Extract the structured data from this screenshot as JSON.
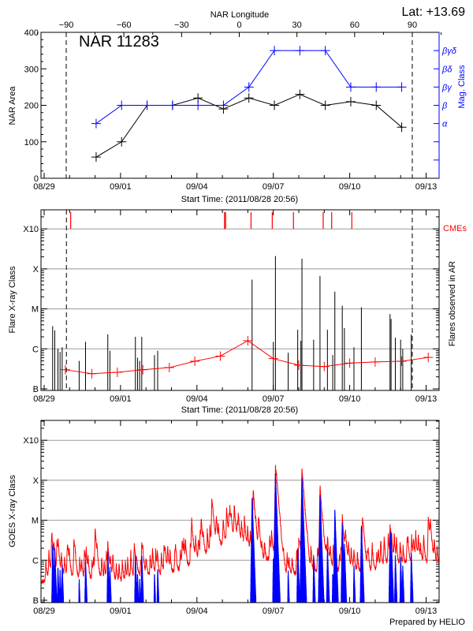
{
  "footer": "Prepared by HELIO",
  "chart_data": [
    {
      "type": "line",
      "title": "NAR 11283",
      "annotation": "Lat: +13.69",
      "top_xlabel": "NAR Longitude",
      "top_xticks": [
        "-90",
        "-60",
        "-30",
        "0",
        "30",
        "60",
        "90"
      ],
      "xlabel": "Start Time: (2011/08/28 20:56)",
      "xticks": [
        "08/29",
        "09/01",
        "09/04",
        "09/07",
        "09/10",
        "09/13"
      ],
      "ylabel": "NAR Area",
      "ylim": [
        0,
        400
      ],
      "yticks": [
        "0",
        "100",
        "200",
        "300",
        "400"
      ],
      "y2label": "Mag. Class",
      "y2ticks": [
        "α",
        "β",
        "βγ",
        "βδ",
        "βγδ"
      ],
      "limb_longitudes": [
        -90,
        90
      ],
      "dates": [
        "08/31 01:00",
        "09/01 01:00",
        "09/02 01:00",
        "09/03 01:00",
        "09/04 01:00",
        "09/05 01:00",
        "09/06 01:00",
        "09/07 01:00",
        "09/08 01:00",
        "09/09 01:00",
        "09/10 01:00",
        "09/11 01:00",
        "09/12 01:00"
      ],
      "series": [
        {
          "values": [
            58,
            100,
            200,
            200,
            220,
            190,
            220,
            200,
            230,
            200,
            210,
            200,
            140
          ],
          "color": "#000000"
        },
        {
          "values": [
            "α",
            "β",
            "β",
            "β",
            "β",
            "β",
            "βγ",
            "βγδ",
            "βγδ",
            "βγδ",
            "βγ",
            "βγ",
            "βγ"
          ],
          "color": "#0000ff"
        }
      ]
    },
    {
      "type": "bar",
      "xlabel": "Start Time: (2011/08/28 20:56)",
      "xticks": [
        "08/29",
        "09/01",
        "09/04",
        "09/07",
        "09/10",
        "09/13"
      ],
      "ylabel": "Flare X-ray Class",
      "y2label": "Flares observed in AR",
      "yticks": [
        "B",
        "C",
        "M",
        "X",
        "X10"
      ],
      "grid": true,
      "cme_label": "CMEs",
      "cme_color": "#ff0000",
      "limb_crossings": [
        "08/29 21:00",
        "09/12 11:00"
      ],
      "cmes": [
        "08/30 01:00",
        "09/05 02:00",
        "09/05 03:00",
        "09/06 03:00",
        "09/06 23:00",
        "09/07 19:00",
        "09/08 23:00",
        "09/09 07:00",
        "09/10 02:00"
      ],
      "flares": [
        {
          "t": "08/29 08:00",
          "c": "C3.7"
        },
        {
          "t": "08/29 10:00",
          "c": "C2.9"
        },
        {
          "t": "08/29 13:00",
          "c": "C1.0"
        },
        {
          "t": "08/29 15:00",
          "c": "B8.4"
        },
        {
          "t": "08/29 17:00",
          "c": "C1.1"
        },
        {
          "t": "08/30 09:00",
          "c": "B5.0"
        },
        {
          "t": "08/30 15:00",
          "c": "C1.5"
        },
        {
          "t": "08/31 12:00",
          "c": "C2.3"
        },
        {
          "t": "08/31 14:00",
          "c": "B9.0"
        },
        {
          "t": "09/01 14:00",
          "c": "C2.0"
        },
        {
          "t": "09/01 16:00",
          "c": "B6.0"
        },
        {
          "t": "09/01 18:00",
          "c": "B5.0"
        },
        {
          "t": "09/01 20:00",
          "c": "C2.0"
        },
        {
          "t": "09/02 08:00",
          "c": "B7.0"
        },
        {
          "t": "09/02 11:00",
          "c": "B9.0"
        },
        {
          "t": "09/06 04:00",
          "c": "M5.4"
        },
        {
          "t": "09/07 00:00",
          "c": "C1.5"
        },
        {
          "t": "09/07 02:00",
          "c": "X2.1"
        },
        {
          "t": "09/07 14:00",
          "c": "B8.0"
        },
        {
          "t": "09/07 23:00",
          "c": "C3.0"
        },
        {
          "t": "09/08 02:00",
          "c": "C1.6"
        },
        {
          "t": "09/08 03:00",
          "c": "X1.8"
        },
        {
          "t": "09/08 14:00",
          "c": "C1.7"
        },
        {
          "t": "09/08 20:00",
          "c": "M6.7"
        },
        {
          "t": "09/09 03:00",
          "c": "C3.0"
        },
        {
          "t": "09/09 08:00",
          "c": "B7.0"
        },
        {
          "t": "09/09 10:00",
          "c": "M2.7"
        },
        {
          "t": "09/09 17:00",
          "c": "M1.2"
        },
        {
          "t": "09/09 19:00",
          "c": "C3.3"
        },
        {
          "t": "09/10 04:00",
          "c": "C1.1"
        },
        {
          "t": "09/10 11:00",
          "c": "M1.1"
        },
        {
          "t": "09/11 14:00",
          "c": "C7.4"
        },
        {
          "t": "09/11 15:00",
          "c": "C5.6"
        },
        {
          "t": "09/11 19:00",
          "c": "C1.9"
        },
        {
          "t": "09/12 00:00",
          "c": "C1.7"
        },
        {
          "t": "09/12 02:00",
          "c": "C1.0"
        },
        {
          "t": "09/12 10:00",
          "c": "C2.3"
        }
      ],
      "mean_line": {
        "color": "#ff0000",
        "dates": [
          "08/29 20:00",
          "08/30 21:00",
          "08/31 21:00",
          "09/01 21:00",
          "09/02 22:00",
          "09/03 22:00",
          "09/04 22:00",
          "09/06 00:00",
          "09/07 00:00",
          "09/08 00:00",
          "09/09 00:00",
          "09/10 00:00",
          "09/11 00:00",
          "09/12 01:00",
          "09/13 02:00"
        ],
        "values": [
          "B3.0",
          "B2.4",
          "B2.6",
          "B3.0",
          "B3.4",
          "B4.9",
          "B6.6",
          "C1.6",
          "B5.7",
          "B3.9",
          "B3.6",
          "B4.4",
          "B4.7",
          "B4.9",
          "B6.1"
        ]
      }
    },
    {
      "type": "line",
      "xticks": [
        "08/29",
        "09/01",
        "09/04",
        "09/07",
        "09/10",
        "09/13"
      ],
      "ylabel": "GOES X-ray Class",
      "yticks": [
        "B",
        "C",
        "M",
        "X",
        "X10"
      ],
      "grid": true,
      "series": [
        {
          "color": "#ff0000",
          "background": [
            {
              "t": "08/29 00:00",
              "c": "B3.0"
            },
            {
              "t": "08/29 12:00",
              "c": "B5.0"
            },
            {
              "t": "08/30 00:00",
              "c": "B3.5"
            },
            {
              "t": "08/31 00:00",
              "c": "B3.3"
            },
            {
              "t": "09/01 00:00",
              "c": "B3.0"
            },
            {
              "t": "09/02 00:00",
              "c": "B4.1"
            },
            {
              "t": "09/03 00:00",
              "c": "B4.8"
            },
            {
              "t": "09/04 00:00",
              "c": "B8.7"
            },
            {
              "t": "09/05 00:00",
              "c": "C2.5"
            },
            {
              "t": "09/05 12:00",
              "c": "C3.4"
            },
            {
              "t": "09/06 00:00",
              "c": "C2.2"
            },
            {
              "t": "09/06 12:00",
              "c": "B6.5"
            },
            {
              "t": "09/07 00:00",
              "c": "C1.5"
            },
            {
              "t": "09/07 12:00",
              "c": "B4.1"
            },
            {
              "t": "09/08 00:00",
              "c": "B4.8"
            },
            {
              "t": "09/08 12:00",
              "c": "B4.1"
            },
            {
              "t": "09/09 00:00",
              "c": "B6.0"
            },
            {
              "t": "09/09 12:00",
              "c": "B5.5"
            },
            {
              "t": "09/10 00:00",
              "c": "B6.0"
            },
            {
              "t": "09/10 12:00",
              "c": "B4.8"
            },
            {
              "t": "09/11 00:00",
              "c": "B5.5"
            },
            {
              "t": "09/11 12:00",
              "c": "B8.7"
            },
            {
              "t": "09/12 00:00",
              "c": "B7.5"
            },
            {
              "t": "09/12 12:00",
              "c": "B9.5"
            },
            {
              "t": "09/13 12:00",
              "c": "B7.5"
            }
          ],
          "peaks": [
            {
              "t": "08/29 07:00",
              "c": "C3.8"
            },
            {
              "t": "08/29 12:00",
              "c": "C2.9"
            },
            {
              "t": "08/29 22:00",
              "c": "C1.9"
            },
            {
              "t": "08/30 04:00",
              "c": "C2.0"
            },
            {
              "t": "08/30 14:00",
              "c": "C1.5"
            },
            {
              "t": "08/31 00:00",
              "c": "C5.6"
            },
            {
              "t": "08/31 12:00",
              "c": "C2.4"
            },
            {
              "t": "09/01 13:00",
              "c": "C2.1"
            },
            {
              "t": "09/01 20:00",
              "c": "C2.1"
            },
            {
              "t": "09/02 17:00",
              "c": "C1.9"
            },
            {
              "t": "09/03 10:00",
              "c": "C2.5"
            },
            {
              "t": "09/03 19:00",
              "c": "C8.0"
            },
            {
              "t": "09/04 04:00",
              "c": "C8.5"
            },
            {
              "t": "09/04 14:00",
              "c": "M3.3"
            },
            {
              "t": "09/04 18:00",
              "c": "C5.7"
            },
            {
              "t": "09/05 04:00",
              "c": "C7.7"
            },
            {
              "t": "09/05 07:00",
              "c": "M1.6"
            },
            {
              "t": "09/05 11:00",
              "c": "M1.2"
            },
            {
              "t": "09/05 14:00",
              "c": "C4.8"
            },
            {
              "t": "09/06 05:00",
              "c": "M5.7"
            },
            {
              "t": "09/06 10:00",
              "c": "C9.7"
            },
            {
              "t": "09/07 02:00",
              "c": "X2.2"
            },
            {
              "t": "09/07 03:00",
              "c": "M4.7"
            },
            {
              "t": "09/08 00:00",
              "c": "C3.1"
            },
            {
              "t": "09/08 03:00",
              "c": "X1.9"
            },
            {
              "t": "09/08 04:00",
              "c": "C9.0"
            },
            {
              "t": "09/08 20:00",
              "c": "M7.0"
            },
            {
              "t": "09/09 03:00",
              "c": "C2.9"
            },
            {
              "t": "09/09 17:00",
              "c": "M1.2"
            },
            {
              "t": "09/09 20:00",
              "c": "C3.4"
            },
            {
              "t": "09/10 12:00",
              "c": "M1.2"
            },
            {
              "t": "09/11 14:00",
              "c": "C6.9"
            },
            {
              "t": "09/12 12:00",
              "c": "C2.3"
            },
            {
              "t": "09/13 02:00",
              "c": "M1.0"
            },
            {
              "t": "09/13 04:00",
              "c": "C5.7"
            }
          ]
        },
        {
          "color": "#0000ff",
          "peaks_from": "flares observed in AR"
        }
      ]
    }
  ]
}
